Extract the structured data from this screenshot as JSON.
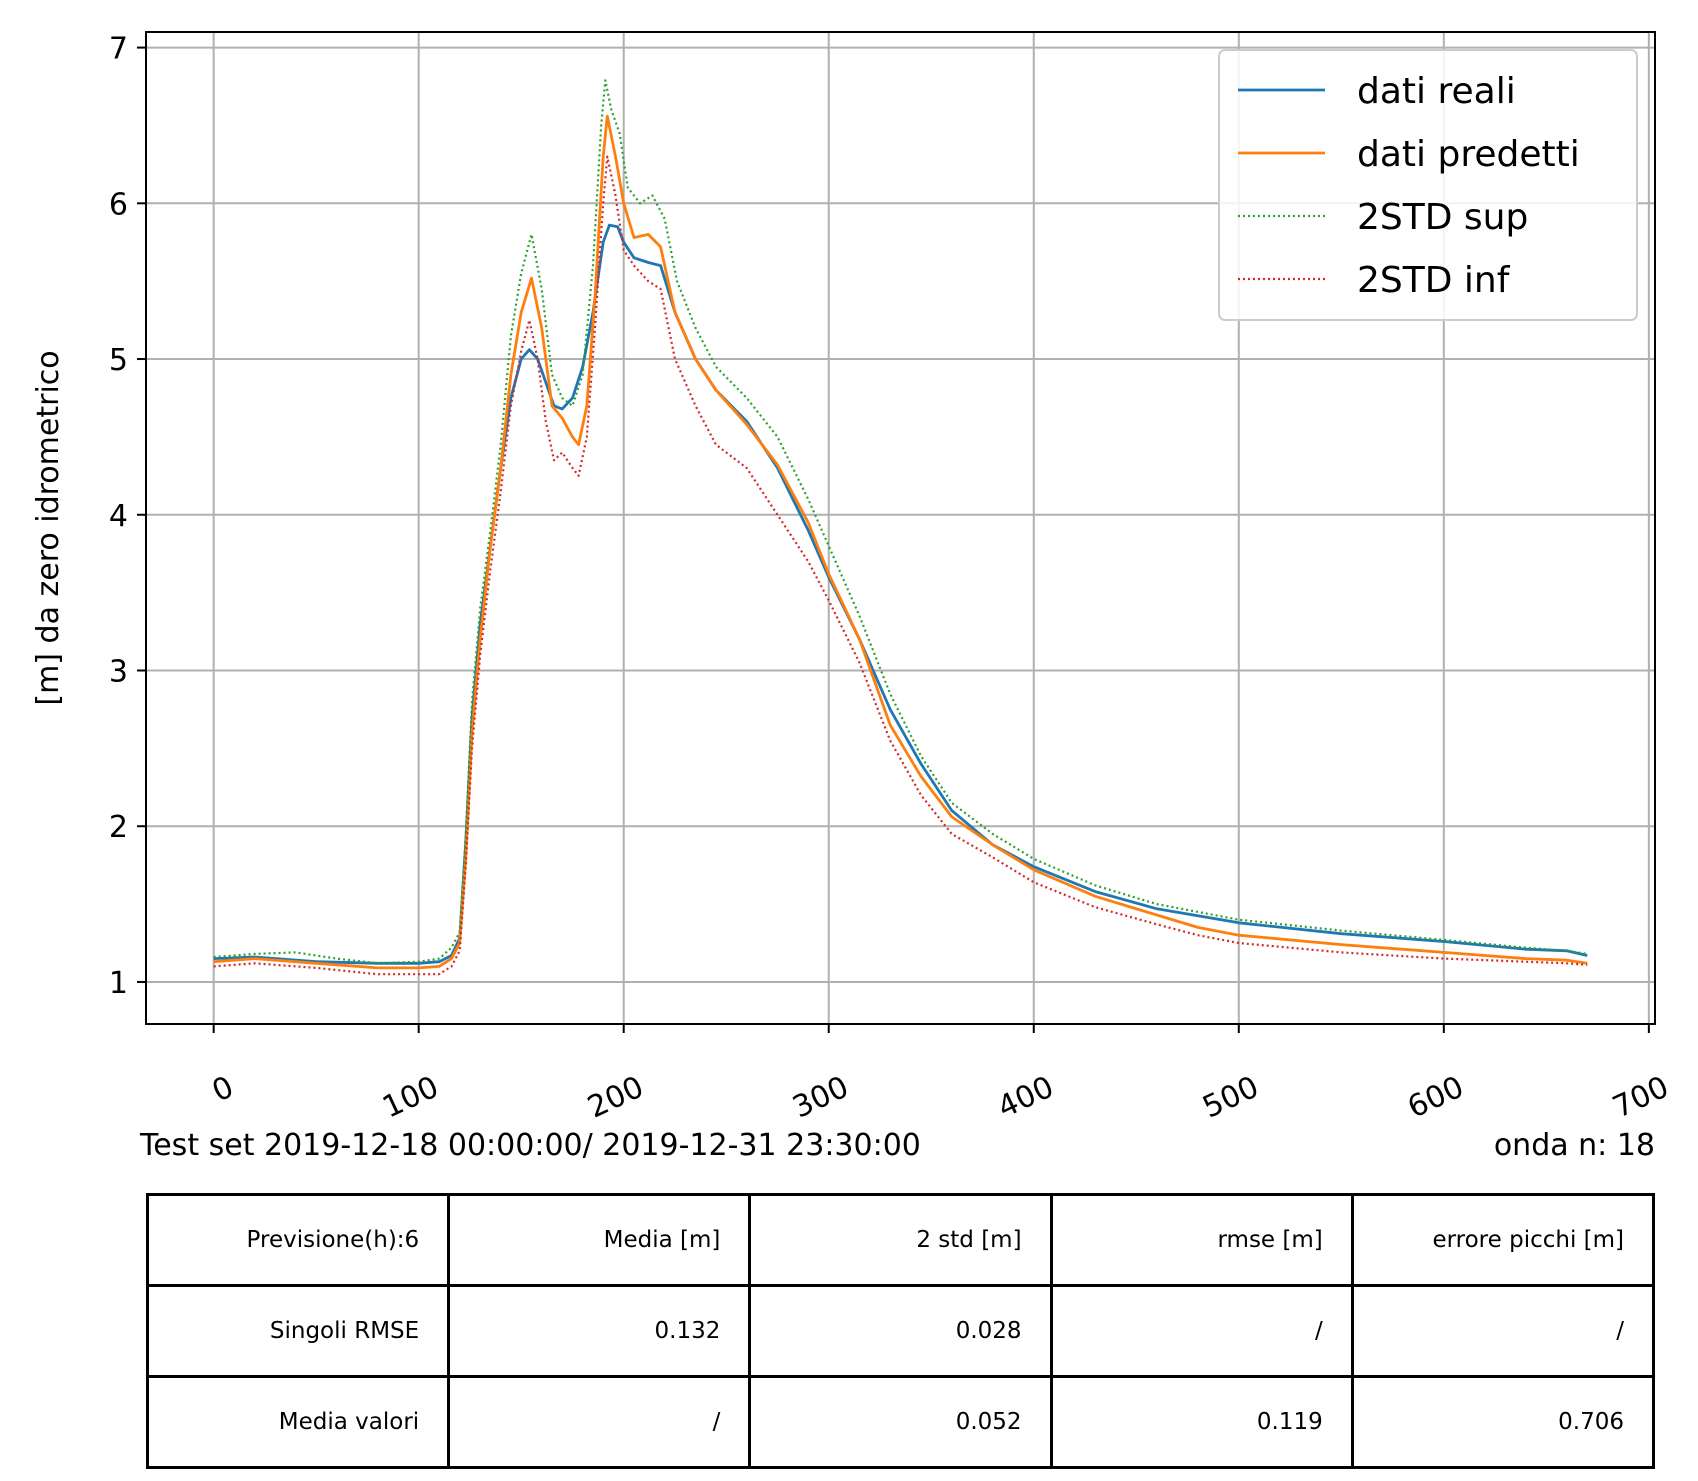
{
  "chart_data": {
    "type": "line",
    "title": "",
    "xlabel": "",
    "ylabel": "[m] da zero idrometrico",
    "xlim": [
      -33,
      703
    ],
    "ylim": [
      0.73,
      7.1
    ],
    "xticks": [
      0,
      100,
      200,
      300,
      400,
      500,
      600,
      700
    ],
    "yticks": [
      1,
      2,
      3,
      4,
      5,
      6,
      7
    ],
    "grid": true,
    "legend_position": "top-right",
    "series": [
      {
        "name": "dati reali",
        "color": "#1f77b4",
        "style": "solid",
        "points": [
          [
            0,
            1.15
          ],
          [
            20,
            1.16
          ],
          [
            50,
            1.13
          ],
          [
            80,
            1.12
          ],
          [
            100,
            1.12
          ],
          [
            110,
            1.13
          ],
          [
            116,
            1.17
          ],
          [
            120,
            1.28
          ],
          [
            123,
            1.9
          ],
          [
            126,
            2.7
          ],
          [
            130,
            3.3
          ],
          [
            135,
            3.8
          ],
          [
            140,
            4.3
          ],
          [
            145,
            4.75
          ],
          [
            150,
            5.0
          ],
          [
            154,
            5.06
          ],
          [
            158,
            5.0
          ],
          [
            162,
            4.85
          ],
          [
            166,
            4.7
          ],
          [
            170,
            4.68
          ],
          [
            175,
            4.75
          ],
          [
            180,
            4.95
          ],
          [
            185,
            5.3
          ],
          [
            190,
            5.75
          ],
          [
            193,
            5.86
          ],
          [
            197,
            5.85
          ],
          [
            200,
            5.75
          ],
          [
            205,
            5.65
          ],
          [
            212,
            5.62
          ],
          [
            218,
            5.6
          ],
          [
            225,
            5.3
          ],
          [
            235,
            5.0
          ],
          [
            245,
            4.8
          ],
          [
            260,
            4.6
          ],
          [
            275,
            4.3
          ],
          [
            290,
            3.9
          ],
          [
            300,
            3.6
          ],
          [
            315,
            3.2
          ],
          [
            330,
            2.75
          ],
          [
            345,
            2.4
          ],
          [
            360,
            2.1
          ],
          [
            380,
            1.88
          ],
          [
            400,
            1.74
          ],
          [
            430,
            1.58
          ],
          [
            460,
            1.47
          ],
          [
            500,
            1.38
          ],
          [
            550,
            1.31
          ],
          [
            600,
            1.26
          ],
          [
            640,
            1.21
          ],
          [
            660,
            1.2
          ],
          [
            670,
            1.17
          ]
        ]
      },
      {
        "name": "dati predetti",
        "color": "#ff7f0e",
        "style": "solid",
        "points": [
          [
            0,
            1.13
          ],
          [
            20,
            1.15
          ],
          [
            50,
            1.12
          ],
          [
            80,
            1.09
          ],
          [
            100,
            1.09
          ],
          [
            110,
            1.1
          ],
          [
            116,
            1.15
          ],
          [
            120,
            1.25
          ],
          [
            123,
            1.8
          ],
          [
            126,
            2.6
          ],
          [
            130,
            3.2
          ],
          [
            135,
            3.8
          ],
          [
            140,
            4.3
          ],
          [
            145,
            4.9
          ],
          [
            150,
            5.3
          ],
          [
            155,
            5.52
          ],
          [
            160,
            5.2
          ],
          [
            165,
            4.7
          ],
          [
            170,
            4.62
          ],
          [
            175,
            4.5
          ],
          [
            178,
            4.45
          ],
          [
            182,
            4.7
          ],
          [
            186,
            5.4
          ],
          [
            190,
            6.3
          ],
          [
            192,
            6.56
          ],
          [
            196,
            6.3
          ],
          [
            200,
            6.0
          ],
          [
            205,
            5.78
          ],
          [
            212,
            5.8
          ],
          [
            218,
            5.72
          ],
          [
            225,
            5.3
          ],
          [
            235,
            5.0
          ],
          [
            245,
            4.8
          ],
          [
            260,
            4.58
          ],
          [
            275,
            4.32
          ],
          [
            290,
            3.95
          ],
          [
            300,
            3.62
          ],
          [
            315,
            3.2
          ],
          [
            330,
            2.65
          ],
          [
            345,
            2.32
          ],
          [
            360,
            2.06
          ],
          [
            380,
            1.88
          ],
          [
            400,
            1.72
          ],
          [
            430,
            1.55
          ],
          [
            460,
            1.43
          ],
          [
            480,
            1.35
          ],
          [
            500,
            1.3
          ],
          [
            550,
            1.24
          ],
          [
            600,
            1.19
          ],
          [
            640,
            1.15
          ],
          [
            660,
            1.14
          ],
          [
            670,
            1.12
          ]
        ]
      },
      {
        "name": "2STD sup",
        "color": "#2ca02c",
        "style": "dotted",
        "points": [
          [
            0,
            1.16
          ],
          [
            20,
            1.18
          ],
          [
            40,
            1.19
          ],
          [
            60,
            1.15
          ],
          [
            80,
            1.12
          ],
          [
            100,
            1.13
          ],
          [
            110,
            1.15
          ],
          [
            116,
            1.22
          ],
          [
            120,
            1.32
          ],
          [
            123,
            1.95
          ],
          [
            126,
            2.8
          ],
          [
            130,
            3.4
          ],
          [
            135,
            3.9
          ],
          [
            140,
            4.45
          ],
          [
            145,
            5.15
          ],
          [
            150,
            5.55
          ],
          [
            155,
            5.8
          ],
          [
            160,
            5.45
          ],
          [
            165,
            4.9
          ],
          [
            170,
            4.75
          ],
          [
            175,
            4.7
          ],
          [
            180,
            4.9
          ],
          [
            185,
            5.6
          ],
          [
            189,
            6.5
          ],
          [
            191,
            6.79
          ],
          [
            194,
            6.6
          ],
          [
            198,
            6.45
          ],
          [
            202,
            6.1
          ],
          [
            208,
            6.0
          ],
          [
            214,
            6.05
          ],
          [
            220,
            5.9
          ],
          [
            226,
            5.5
          ],
          [
            235,
            5.2
          ],
          [
            245,
            4.95
          ],
          [
            260,
            4.75
          ],
          [
            275,
            4.5
          ],
          [
            290,
            4.1
          ],
          [
            300,
            3.8
          ],
          [
            315,
            3.35
          ],
          [
            330,
            2.85
          ],
          [
            345,
            2.45
          ],
          [
            360,
            2.15
          ],
          [
            380,
            1.95
          ],
          [
            400,
            1.79
          ],
          [
            430,
            1.62
          ],
          [
            460,
            1.5
          ],
          [
            500,
            1.4
          ],
          [
            550,
            1.33
          ],
          [
            600,
            1.27
          ],
          [
            640,
            1.22
          ],
          [
            660,
            1.2
          ],
          [
            670,
            1.18
          ]
        ]
      },
      {
        "name": "2STD inf",
        "color": "#d62728",
        "style": "dotted",
        "points": [
          [
            0,
            1.1
          ],
          [
            20,
            1.12
          ],
          [
            50,
            1.09
          ],
          [
            80,
            1.05
          ],
          [
            100,
            1.05
          ],
          [
            110,
            1.05
          ],
          [
            116,
            1.1
          ],
          [
            120,
            1.2
          ],
          [
            123,
            1.75
          ],
          [
            126,
            2.5
          ],
          [
            130,
            3.1
          ],
          [
            135,
            3.65
          ],
          [
            140,
            4.15
          ],
          [
            145,
            4.7
          ],
          [
            150,
            5.05
          ],
          [
            154,
            5.25
          ],
          [
            158,
            5.0
          ],
          [
            162,
            4.6
          ],
          [
            166,
            4.35
          ],
          [
            170,
            4.4
          ],
          [
            175,
            4.3
          ],
          [
            178,
            4.25
          ],
          [
            182,
            4.5
          ],
          [
            186,
            5.2
          ],
          [
            190,
            6.0
          ],
          [
            192,
            6.3
          ],
          [
            196,
            6.05
          ],
          [
            200,
            5.7
          ],
          [
            205,
            5.6
          ],
          [
            212,
            5.5
          ],
          [
            218,
            5.45
          ],
          [
            225,
            5.0
          ],
          [
            235,
            4.7
          ],
          [
            245,
            4.45
          ],
          [
            260,
            4.3
          ],
          [
            275,
            4.0
          ],
          [
            290,
            3.7
          ],
          [
            300,
            3.45
          ],
          [
            315,
            3.05
          ],
          [
            330,
            2.55
          ],
          [
            345,
            2.2
          ],
          [
            360,
            1.95
          ],
          [
            380,
            1.8
          ],
          [
            400,
            1.64
          ],
          [
            430,
            1.48
          ],
          [
            460,
            1.37
          ],
          [
            480,
            1.3
          ],
          [
            500,
            1.25
          ],
          [
            550,
            1.19
          ],
          [
            600,
            1.15
          ],
          [
            640,
            1.13
          ],
          [
            660,
            1.12
          ],
          [
            670,
            1.11
          ]
        ]
      }
    ]
  },
  "caption": {
    "test_set": "Test set  2019-12-18 00:00:00/ 2019-12-31 23:30:00",
    "onda": "onda n: 18"
  },
  "table": {
    "rows": [
      [
        "Previsione(h):6",
        "Media [m]",
        "2 std [m]",
        "rmse [m]",
        "errore picchi [m]"
      ],
      [
        "Singoli RMSE",
        "0.132",
        "0.028",
        "/",
        "/"
      ],
      [
        "Media valori",
        "/",
        "0.052",
        "0.119",
        "0.706"
      ]
    ]
  }
}
